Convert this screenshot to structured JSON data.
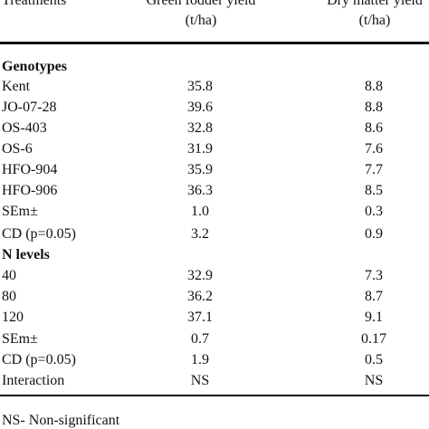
{
  "header": {
    "col1": "Treatments",
    "col2_line1": "Green fodder yield",
    "col2_line2": "(t/ha)",
    "col3_line1": "Dry matter yield",
    "col3_line2": "(t/ha)"
  },
  "sections": {
    "genotypes_title": "Genotypes",
    "genotypes_rows": [
      {
        "label": "Kent",
        "green": "35.8",
        "dry": "8.8"
      },
      {
        "label": "JO-07-28",
        "green": "39.6",
        "dry": "8.8"
      },
      {
        "label": "OS-403",
        "green": "32.8",
        "dry": "8.6"
      },
      {
        "label": "OS-6",
        "green": "31.9",
        "dry": "7.6"
      },
      {
        "label": "HFO-904",
        "green": "35.9",
        "dry": "7.7"
      },
      {
        "label": "HFO-906",
        "green": "36.3",
        "dry": "8.5"
      },
      {
        "label": "SEm±",
        "green": "1.0",
        "dry": "0.3"
      },
      {
        "label": "CD (p=0.05)",
        "green": "3.2",
        "dry": "0.9"
      }
    ],
    "n_levels_title": "N levels",
    "n_rows": [
      {
        "label": "40",
        "green": "32.9",
        "dry": "7.3"
      },
      {
        "label": "80",
        "green": "36.2",
        "dry": "8.7"
      },
      {
        "label": "120",
        "green": "37.1",
        "dry": "9.1"
      },
      {
        "label": "SEm±",
        "green": "0.7",
        "dry": "0.17"
      },
      {
        "label": "CD (p=0.05)",
        "green": "1.9",
        "dry": "0.5"
      },
      {
        "label": "Interaction",
        "green": "NS",
        "dry": "NS"
      }
    ]
  },
  "footnote": "NS- Non-significant"
}
